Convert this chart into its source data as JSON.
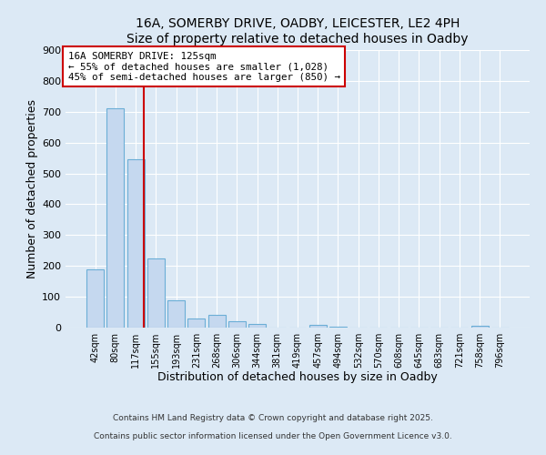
{
  "title1": "16A, SOMERBY DRIVE, OADBY, LEICESTER, LE2 4PH",
  "title2": "Size of property relative to detached houses in Oadby",
  "xlabel": "Distribution of detached houses by size in Oadby",
  "ylabel": "Number of detached properties",
  "bar_labels": [
    "42sqm",
    "80sqm",
    "117sqm",
    "155sqm",
    "193sqm",
    "231sqm",
    "268sqm",
    "306sqm",
    "344sqm",
    "381sqm",
    "419sqm",
    "457sqm",
    "494sqm",
    "532sqm",
    "570sqm",
    "608sqm",
    "645sqm",
    "683sqm",
    "721sqm",
    "758sqm",
    "796sqm"
  ],
  "bar_values": [
    190,
    710,
    545,
    225,
    90,
    30,
    40,
    22,
    12,
    0,
    0,
    8,
    3,
    0,
    0,
    0,
    0,
    0,
    0,
    5,
    0
  ],
  "bar_color": "#c5d8ef",
  "bar_edge_color": "#6baed6",
  "vline_color": "#cc0000",
  "annotation_title": "16A SOMERBY DRIVE: 125sqm",
  "annotation_line1": "← 55% of detached houses are smaller (1,028)",
  "annotation_line2": "45% of semi-detached houses are larger (850) →",
  "annotation_box_color": "#ffffff",
  "annotation_box_edge": "#cc0000",
  "ylim": [
    0,
    900
  ],
  "yticks": [
    0,
    100,
    200,
    300,
    400,
    500,
    600,
    700,
    800,
    900
  ],
  "footer1": "Contains HM Land Registry data © Crown copyright and database right 2025.",
  "footer2": "Contains public sector information licensed under the Open Government Licence v3.0.",
  "bg_color": "#dce9f5",
  "plot_bg_color": "#dce9f5",
  "grid_color": "#ffffff"
}
